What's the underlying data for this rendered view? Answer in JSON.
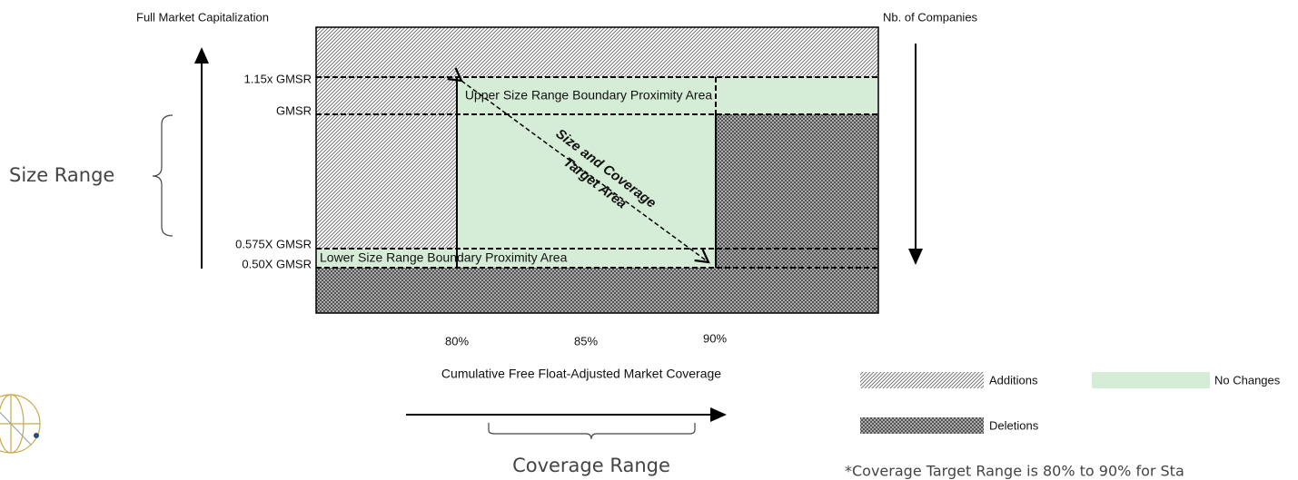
{
  "left_axis_title": "Full Market Capitalization",
  "right_axis_title": "Nb. of Companies",
  "y_labels": [
    "1.15x GMSR",
    "GMSR",
    "0.575X GMSR",
    "0.50X GMSR"
  ],
  "x_labels": [
    "80%",
    "85%",
    "90%"
  ],
  "x_axis_title": "Cumulative Free Float-Adjusted Market Coverage",
  "upper_area": "Upper Size Range Boundary Proximity Area",
  "lower_area": "Lower Size Range Boundary Proximity Area",
  "target_area": [
    "Size and Coverage",
    "Target Area"
  ],
  "size_range": "Size Range",
  "coverage_range": "Coverage Range",
  "legend": [
    "Additions",
    "No Changes",
    "Deletions"
  ],
  "footnote": "*Coverage Target Range is 80% to 90% for Sta"
}
